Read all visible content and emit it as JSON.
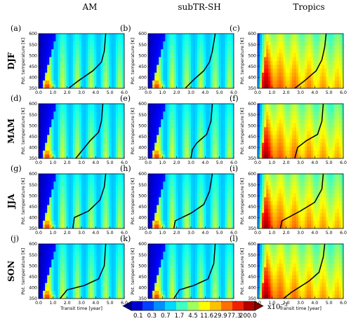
{
  "chart_data": {
    "type": "heatmap",
    "layout": {
      "rows": 4,
      "cols": 3
    },
    "column_titles": [
      "AM",
      "subTR-SH",
      "Tropics"
    ],
    "row_labels": [
      "DJF",
      "MAM",
      "JJA",
      "SON"
    ],
    "panel_letters": [
      "(a)",
      "(b)",
      "(c)",
      "(d)",
      "(e)",
      "(f)",
      "(g)",
      "(h)",
      "(i)",
      "(j)",
      "(k)",
      "(l)"
    ],
    "xlabel": "Transit time [year]",
    "ylabel": "Pot. temperature [K]",
    "xlim": [
      0,
      6
    ],
    "ylim": [
      350,
      600
    ],
    "xticks": [
      "0.0",
      "1.0",
      "2.0",
      "3.0",
      "4.0",
      "5.0",
      "6.0"
    ],
    "yticks": [
      "350",
      "400",
      "450",
      "500",
      "550",
      "600"
    ],
    "colorbar": {
      "label": "x10",
      "label_exponent": "−3",
      "tick_labels": [
        "0.1",
        "0.3",
        "0.7",
        "1.7",
        "4.5",
        "11.6",
        "29.9",
        "77.3",
        "200.0"
      ],
      "colors": [
        "#00008b",
        "#0000d0",
        "#0040ff",
        "#0090ff",
        "#00d8ff",
        "#40ffc0",
        "#a0ff60",
        "#ffff00",
        "#ffc000",
        "#ff7000",
        "#f02000",
        "#b00000",
        "#800000"
      ]
    },
    "mean_age_curves": [
      {
        "panel": "(a)",
        "points": [
          [
            2.1,
            350
          ],
          [
            2.8,
            385
          ],
          [
            3.8,
            430
          ],
          [
            4.4,
            470
          ],
          [
            4.6,
            520
          ],
          [
            4.7,
            600
          ]
        ]
      },
      {
        "panel": "(b)",
        "points": [
          [
            2.6,
            350
          ],
          [
            3.2,
            390
          ],
          [
            3.9,
            430
          ],
          [
            4.3,
            470
          ],
          [
            4.5,
            520
          ],
          [
            4.7,
            600
          ]
        ]
      },
      {
        "panel": "(c)",
        "points": [
          [
            2.6,
            350
          ],
          [
            3.3,
            385
          ],
          [
            4.1,
            430
          ],
          [
            4.5,
            480
          ],
          [
            4.7,
            540
          ],
          [
            4.8,
            600
          ]
        ]
      },
      {
        "panel": "(d)",
        "points": [
          [
            2.6,
            350
          ],
          [
            3.1,
            390
          ],
          [
            3.6,
            430
          ],
          [
            4.2,
            470
          ],
          [
            4.4,
            520
          ],
          [
            4.5,
            600
          ]
        ]
      },
      {
        "panel": "(e)",
        "points": [
          [
            3.0,
            350
          ],
          [
            3.1,
            390
          ],
          [
            3.4,
            420
          ],
          [
            4.1,
            460
          ],
          [
            4.4,
            520
          ],
          [
            4.5,
            600
          ]
        ]
      },
      {
        "panel": "(f)",
        "points": [
          [
            2.6,
            350
          ],
          [
            2.8,
            400
          ],
          [
            3.4,
            430
          ],
          [
            4.2,
            460
          ],
          [
            4.5,
            520
          ],
          [
            4.6,
            600
          ]
        ]
      },
      {
        "panel": "(g)",
        "points": [
          [
            2.4,
            350
          ],
          [
            2.5,
            400
          ],
          [
            3.5,
            430
          ],
          [
            4.3,
            480
          ],
          [
            4.6,
            540
          ],
          [
            4.7,
            600
          ]
        ]
      },
      {
        "panel": "(h)",
        "points": [
          [
            1.8,
            350
          ],
          [
            1.9,
            385
          ],
          [
            3.0,
            420
          ],
          [
            3.9,
            460
          ],
          [
            4.3,
            520
          ],
          [
            4.5,
            600
          ]
        ]
      },
      {
        "panel": "(i)",
        "points": [
          [
            1.6,
            350
          ],
          [
            1.7,
            385
          ],
          [
            3.0,
            430
          ],
          [
            4.0,
            470
          ],
          [
            4.5,
            530
          ],
          [
            4.6,
            600
          ]
        ]
      },
      {
        "panel": "(j)",
        "points": [
          [
            1.5,
            350
          ],
          [
            2.0,
            390
          ],
          [
            3.2,
            410
          ],
          [
            4.2,
            440
          ],
          [
            4.6,
            500
          ],
          [
            4.7,
            600
          ]
        ]
      },
      {
        "panel": "(k)",
        "points": [
          [
            1.8,
            350
          ],
          [
            2.2,
            390
          ],
          [
            3.2,
            410
          ],
          [
            4.2,
            440
          ],
          [
            4.6,
            510
          ],
          [
            4.7,
            600
          ]
        ]
      },
      {
        "panel": "(l)",
        "points": [
          [
            1.8,
            350
          ],
          [
            2.4,
            380
          ],
          [
            3.6,
            430
          ],
          [
            4.3,
            470
          ],
          [
            4.6,
            540
          ],
          [
            4.7,
            600
          ]
        ]
      }
    ]
  }
}
